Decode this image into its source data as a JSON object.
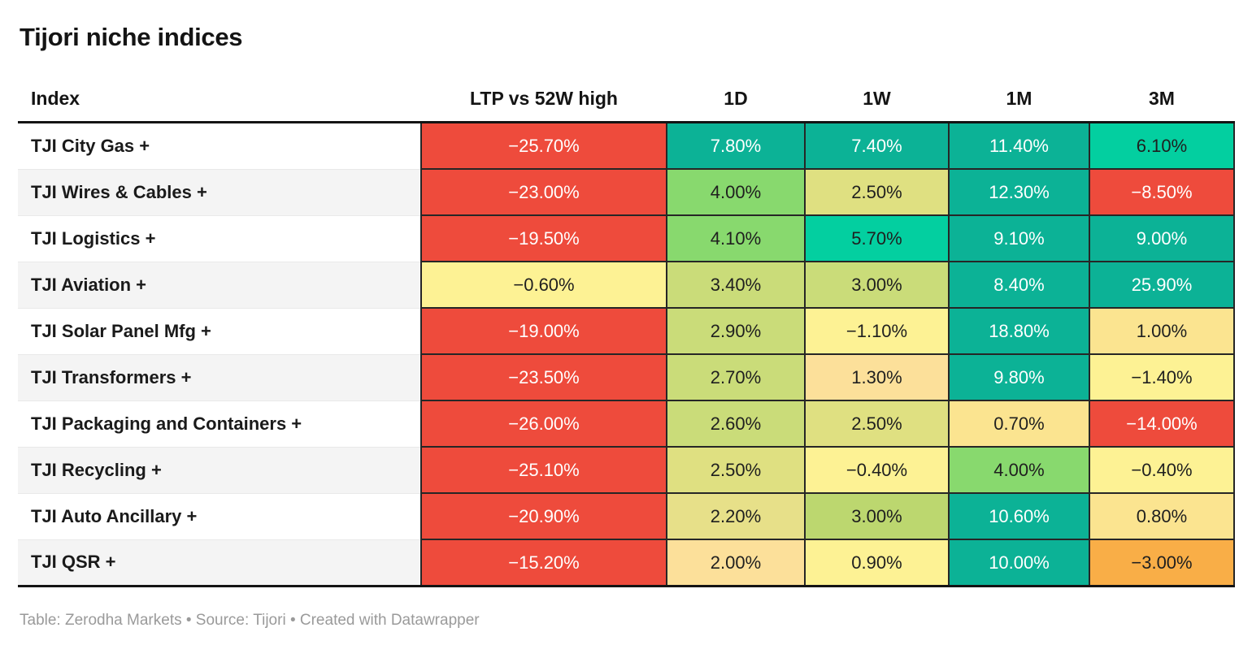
{
  "title": "Tijori niche indices",
  "footer": "Table: Zerodha Markets • Source: Tijori • Created with Datawrapper",
  "columns": [
    "Index",
    "LTP vs 52W high",
    "1D",
    "1W",
    "1M",
    "3M"
  ],
  "accent_colors": {
    "strong_negative_red": "#ee4b3c",
    "strong_positive_teal": "#0cb296",
    "bright_teal_green": "#03cfa0",
    "green": "#88d96e",
    "yellow_green": "#cadc79",
    "khaki": "#dfe081",
    "pale_yellow": "#fdf294",
    "pale_amber": "#fce09a",
    "amber_yellow": "#fbe490",
    "orange": "#f9ae47"
  },
  "table": {
    "rows": [
      {
        "index": "TJI City Gas +",
        "cells": [
          {
            "text": "−25.70%",
            "bg": "#ee4b3c",
            "fg": "#ffffff"
          },
          {
            "text": "7.80%",
            "bg": "#0cb296",
            "fg": "#ffffff"
          },
          {
            "text": "7.40%",
            "bg": "#0cb296",
            "fg": "#ffffff"
          },
          {
            "text": "11.40%",
            "bg": "#0cb296",
            "fg": "#ffffff"
          },
          {
            "text": "6.10%",
            "bg": "#03cfa0",
            "fg": "#1f1f1f"
          }
        ]
      },
      {
        "index": "TJI Wires & Cables +",
        "cells": [
          {
            "text": "−23.00%",
            "bg": "#ee4b3c",
            "fg": "#ffffff"
          },
          {
            "text": "4.00%",
            "bg": "#88d96e",
            "fg": "#1f1f1f"
          },
          {
            "text": "2.50%",
            "bg": "#dfe081",
            "fg": "#1f1f1f"
          },
          {
            "text": "12.30%",
            "bg": "#0cb296",
            "fg": "#ffffff"
          },
          {
            "text": "−8.50%",
            "bg": "#ee4b3c",
            "fg": "#ffffff"
          }
        ]
      },
      {
        "index": "TJI Logistics +",
        "cells": [
          {
            "text": "−19.50%",
            "bg": "#ee4b3c",
            "fg": "#ffffff"
          },
          {
            "text": "4.10%",
            "bg": "#88d96e",
            "fg": "#1f1f1f"
          },
          {
            "text": "5.70%",
            "bg": "#03cfa0",
            "fg": "#1f1f1f"
          },
          {
            "text": "9.10%",
            "bg": "#0cb296",
            "fg": "#ffffff"
          },
          {
            "text": "9.00%",
            "bg": "#0cb296",
            "fg": "#ffffff"
          }
        ]
      },
      {
        "index": "TJI Aviation +",
        "cells": [
          {
            "text": "−0.60%",
            "bg": "#fdf294",
            "fg": "#1f1f1f"
          },
          {
            "text": "3.40%",
            "bg": "#cadc79",
            "fg": "#1f1f1f"
          },
          {
            "text": "3.00%",
            "bg": "#cadc79",
            "fg": "#1f1f1f"
          },
          {
            "text": "8.40%",
            "bg": "#0cb296",
            "fg": "#ffffff"
          },
          {
            "text": "25.90%",
            "bg": "#0cb296",
            "fg": "#ffffff"
          }
        ]
      },
      {
        "index": "TJI Solar Panel Mfg +",
        "cells": [
          {
            "text": "−19.00%",
            "bg": "#ee4b3c",
            "fg": "#ffffff"
          },
          {
            "text": "2.90%",
            "bg": "#cadc79",
            "fg": "#1f1f1f"
          },
          {
            "text": "−1.10%",
            "bg": "#fdf294",
            "fg": "#1f1f1f"
          },
          {
            "text": "18.80%",
            "bg": "#0cb296",
            "fg": "#ffffff"
          },
          {
            "text": "1.00%",
            "bg": "#fbe490",
            "fg": "#1f1f1f"
          }
        ]
      },
      {
        "index": "TJI Transformers +",
        "cells": [
          {
            "text": "−23.50%",
            "bg": "#ee4b3c",
            "fg": "#ffffff"
          },
          {
            "text": "2.70%",
            "bg": "#cadc79",
            "fg": "#1f1f1f"
          },
          {
            "text": "1.30%",
            "bg": "#fce09a",
            "fg": "#1f1f1f"
          },
          {
            "text": "9.80%",
            "bg": "#0cb296",
            "fg": "#ffffff"
          },
          {
            "text": "−1.40%",
            "bg": "#fdf294",
            "fg": "#1f1f1f"
          }
        ]
      },
      {
        "index": "TJI Packaging and Containers +",
        "cells": [
          {
            "text": "−26.00%",
            "bg": "#ee4b3c",
            "fg": "#ffffff"
          },
          {
            "text": "2.60%",
            "bg": "#cadc79",
            "fg": "#1f1f1f"
          },
          {
            "text": "2.50%",
            "bg": "#dfe081",
            "fg": "#1f1f1f"
          },
          {
            "text": "0.70%",
            "bg": "#fbe490",
            "fg": "#1f1f1f"
          },
          {
            "text": "−14.00%",
            "bg": "#ee4b3c",
            "fg": "#ffffff"
          }
        ]
      },
      {
        "index": "TJI Recycling +",
        "cells": [
          {
            "text": "−25.10%",
            "bg": "#ee4b3c",
            "fg": "#ffffff"
          },
          {
            "text": "2.50%",
            "bg": "#dfe081",
            "fg": "#1f1f1f"
          },
          {
            "text": "−0.40%",
            "bg": "#fdf294",
            "fg": "#1f1f1f"
          },
          {
            "text": "4.00%",
            "bg": "#88d96e",
            "fg": "#1f1f1f"
          },
          {
            "text": "−0.40%",
            "bg": "#fdf294",
            "fg": "#1f1f1f"
          }
        ]
      },
      {
        "index": "TJI Auto Ancillary +",
        "cells": [
          {
            "text": "−20.90%",
            "bg": "#ee4b3c",
            "fg": "#ffffff"
          },
          {
            "text": "2.20%",
            "bg": "#e7e089",
            "fg": "#1f1f1f"
          },
          {
            "text": "3.00%",
            "bg": "#bcd76f",
            "fg": "#1f1f1f"
          },
          {
            "text": "10.60%",
            "bg": "#0cb296",
            "fg": "#ffffff"
          },
          {
            "text": "0.80%",
            "bg": "#fbe490",
            "fg": "#1f1f1f"
          }
        ]
      },
      {
        "index": "TJI QSR +",
        "cells": [
          {
            "text": "−15.20%",
            "bg": "#ee4b3c",
            "fg": "#ffffff"
          },
          {
            "text": "2.00%",
            "bg": "#fce09a",
            "fg": "#1f1f1f"
          },
          {
            "text": "0.90%",
            "bg": "#fdf294",
            "fg": "#1f1f1f"
          },
          {
            "text": "10.00%",
            "bg": "#0cb296",
            "fg": "#ffffff"
          },
          {
            "text": "−3.00%",
            "bg": "#f9ae47",
            "fg": "#1f1f1f"
          }
        ]
      }
    ]
  },
  "chart_data": {
    "type": "table",
    "title": "Tijori niche indices",
    "columns": [
      "Index",
      "LTP vs 52W high",
      "1D",
      "1W",
      "1M",
      "3M"
    ],
    "rows": [
      [
        "TJI City Gas +",
        -25.7,
        7.8,
        7.4,
        11.4,
        6.1
      ],
      [
        "TJI Wires & Cables +",
        -23.0,
        4.0,
        2.5,
        12.3,
        -8.5
      ],
      [
        "TJI Logistics +",
        -19.5,
        4.1,
        5.7,
        9.1,
        9.0
      ],
      [
        "TJI Aviation +",
        -0.6,
        3.4,
        3.0,
        8.4,
        25.9
      ],
      [
        "TJI Solar Panel Mfg +",
        -19.0,
        2.9,
        -1.1,
        18.8,
        1.0
      ],
      [
        "TJI Transformers +",
        -23.5,
        2.7,
        1.3,
        9.8,
        -1.4
      ],
      [
        "TJI Packaging and Containers +",
        -26.0,
        2.6,
        2.5,
        0.7,
        -14.0
      ],
      [
        "TJI Recycling +",
        -25.1,
        2.5,
        -0.4,
        4.0,
        -0.4
      ],
      [
        "TJI Auto Ancillary +",
        -20.9,
        2.2,
        3.0,
        10.6,
        0.8
      ],
      [
        "TJI QSR +",
        -15.2,
        2.0,
        0.9,
        10.0,
        -3.0
      ]
    ],
    "notes": "Heatmap-colored table: red = strongly negative, yellow = near zero, green/teal = positive. Values in percent.",
    "source": "Table: Zerodha Markets • Source: Tijori • Created with Datawrapper"
  }
}
